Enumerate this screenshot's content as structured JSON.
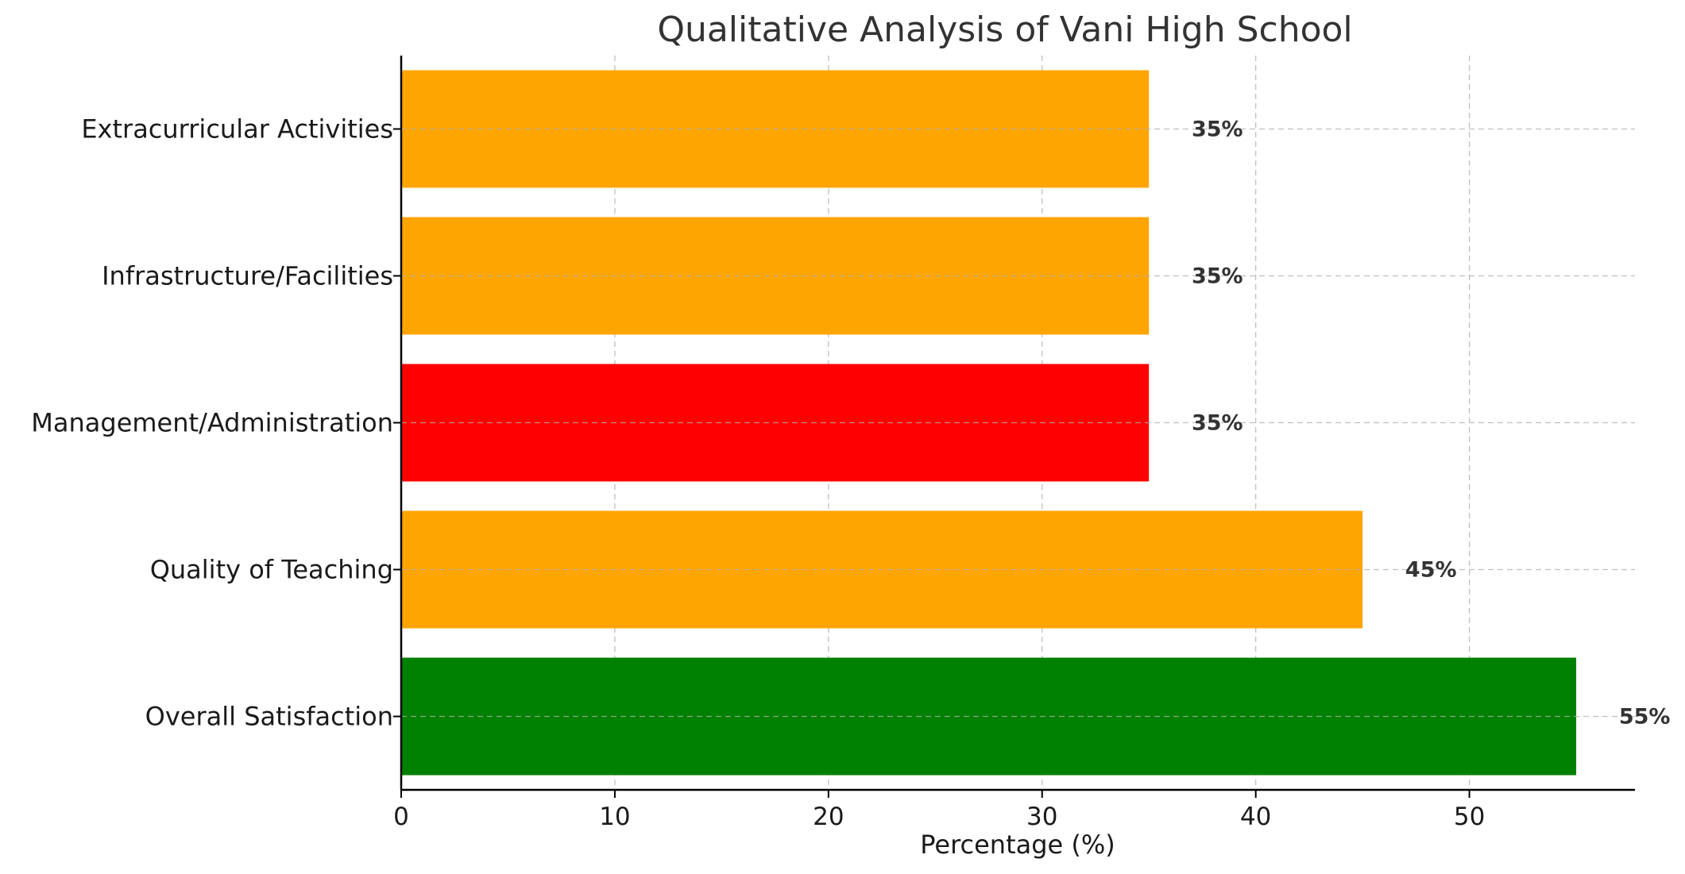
{
  "chart_data": {
    "type": "bar",
    "orientation": "horizontal",
    "title": "Qualitative Analysis of Vani High School",
    "xlabel": "Percentage (%)",
    "ylabel": "",
    "xlim": [
      0,
      57.75
    ],
    "xticks": [
      0,
      10,
      20,
      30,
      40,
      50
    ],
    "grid": true,
    "categories": [
      "Overall Satisfaction",
      "Quality of Teaching",
      "Management/Administration",
      "Infrastructure/Facilities",
      "Extracurricular Activities"
    ],
    "values": [
      55,
      45,
      35,
      35,
      35
    ],
    "value_labels": [
      "55%",
      "45%",
      "35%",
      "35%",
      "35%"
    ],
    "colors": [
      "#008000",
      "#FFA500",
      "#FF0000",
      "#FFA500",
      "#FFA500"
    ]
  }
}
